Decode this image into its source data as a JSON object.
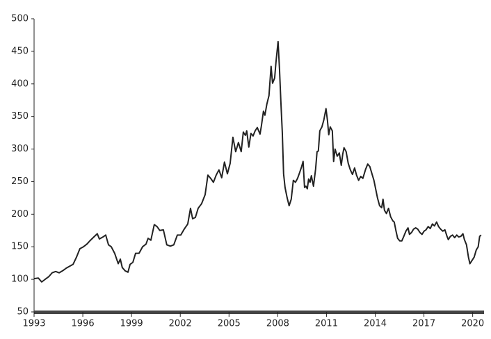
{
  "chart_data": {
    "type": "line",
    "x": [
      1993.0,
      1993.26,
      1993.47,
      1993.68,
      1993.9,
      1994.11,
      1994.33,
      1994.54,
      1994.75,
      1994.97,
      1995.18,
      1995.4,
      1995.61,
      1995.82,
      1996.04,
      1996.25,
      1996.47,
      1996.68,
      1996.89,
      1997.02,
      1997.24,
      1997.41,
      1997.58,
      1997.75,
      1997.96,
      1998.18,
      1998.31,
      1998.43,
      1998.61,
      1998.78,
      1998.91,
      1999.08,
      1999.25,
      1999.46,
      1999.68,
      1999.89,
      2000.02,
      2000.19,
      2000.4,
      2000.57,
      2000.74,
      2000.96,
      2001.17,
      2001.39,
      2001.6,
      2001.82,
      2002.03,
      2002.24,
      2002.46,
      2002.63,
      2002.76,
      2002.93,
      2003.1,
      2003.31,
      2003.53,
      2003.7,
      2003.87,
      2004.04,
      2004.21,
      2004.38,
      2004.55,
      2004.72,
      2004.9,
      2005.07,
      2005.24,
      2005.41,
      2005.58,
      2005.75,
      2005.88,
      2006.01,
      2006.09,
      2006.22,
      2006.35,
      2006.48,
      2006.61,
      2006.74,
      2006.91,
      2006.99,
      2007.12,
      2007.21,
      2007.33,
      2007.46,
      2007.59,
      2007.68,
      2007.81,
      2007.89,
      2008.02,
      2008.11,
      2008.19,
      2008.28,
      2008.36,
      2008.45,
      2008.58,
      2008.7,
      2008.83,
      2008.96,
      2009.09,
      2009.22,
      2009.35,
      2009.47,
      2009.56,
      2009.65,
      2009.73,
      2009.82,
      2009.9,
      2009.99,
      2010.07,
      2010.2,
      2010.33,
      2010.42,
      2010.5,
      2010.59,
      2010.72,
      2010.84,
      2010.97,
      2011.06,
      2011.14,
      2011.23,
      2011.36,
      2011.44,
      2011.53,
      2011.66,
      2011.79,
      2011.91,
      2012.0,
      2012.08,
      2012.21,
      2012.34,
      2012.47,
      2012.6,
      2012.73,
      2012.85,
      2012.98,
      2013.11,
      2013.24,
      2013.41,
      2013.54,
      2013.67,
      2013.8,
      2013.92,
      2014.01,
      2014.14,
      2014.27,
      2014.4,
      2014.48,
      2014.57,
      2014.69,
      2014.82,
      2014.95,
      2015.08,
      2015.17,
      2015.29,
      2015.38,
      2015.51,
      2015.64,
      2015.76,
      2015.89,
      2016.02,
      2016.11,
      2016.24,
      2016.36,
      2016.49,
      2016.62,
      2016.75,
      2016.88,
      2017.01,
      2017.13,
      2017.26,
      2017.39,
      2017.52,
      2017.65,
      2017.78,
      2017.9,
      2018.03,
      2018.16,
      2018.29,
      2018.42,
      2018.5,
      2018.63,
      2018.76,
      2018.89,
      2019.02,
      2019.14,
      2019.27,
      2019.4,
      2019.49,
      2019.62,
      2019.74,
      2019.83,
      2019.96,
      2020.09,
      2020.22,
      2020.34,
      2020.43,
      2020.52
    ],
    "series": [
      {
        "color": "#222222",
        "values": [
          101,
          102,
          96,
          100,
          104,
          110,
          112,
          110,
          113,
          117,
          120,
          123,
          134,
          147,
          150,
          154,
          160,
          165,
          170,
          162,
          165,
          168,
          153,
          150,
          140,
          124,
          131,
          118,
          113,
          111,
          123,
          126,
          140,
          140,
          150,
          154,
          163,
          160,
          184,
          181,
          175,
          176,
          153,
          151,
          153,
          168,
          168,
          177,
          185,
          209,
          193,
          195,
          209,
          216,
          230,
          260,
          255,
          249,
          260,
          268,
          256,
          280,
          262,
          278,
          318,
          296,
          310,
          296,
          326,
          321,
          328,
          303,
          324,
          320,
          328,
          333,
          323,
          335,
          358,
          352,
          369,
          382,
          427,
          401,
          409,
          433,
          465,
          422,
          374,
          326,
          262,
          241,
          225,
          213,
          223,
          252,
          249,
          255,
          264,
          273,
          281,
          241,
          243,
          239,
          254,
          249,
          259,
          243,
          269,
          296,
          297,
          328,
          334,
          345,
          362,
          344,
          322,
          334,
          328,
          281,
          300,
          289,
          294,
          275,
          292,
          302,
          296,
          278,
          268,
          261,
          271,
          260,
          252,
          258,
          255,
          269,
          277,
          273,
          262,
          252,
          241,
          225,
          213,
          210,
          223,
          206,
          201,
          209,
          196,
          190,
          188,
          173,
          163,
          159,
          159,
          166,
          174,
          179,
          169,
          172,
          177,
          179,
          177,
          172,
          169,
          174,
          176,
          181,
          178,
          185,
          182,
          188,
          181,
          177,
          174,
          176,
          166,
          161,
          166,
          168,
          164,
          168,
          165,
          166,
          170,
          161,
          153,
          134,
          124,
          129,
          134,
          145,
          150,
          166,
          168
        ]
      }
    ],
    "xlim": [
      1993,
      2020.7
    ],
    "xticks": [
      1993,
      1996,
      1999,
      2002,
      2005,
      2008,
      2011,
      2014,
      2017,
      2020
    ],
    "ylim": [
      50,
      500
    ],
    "yticks": [
      50,
      100,
      150,
      200,
      250,
      300,
      350,
      400,
      450,
      500
    ]
  }
}
